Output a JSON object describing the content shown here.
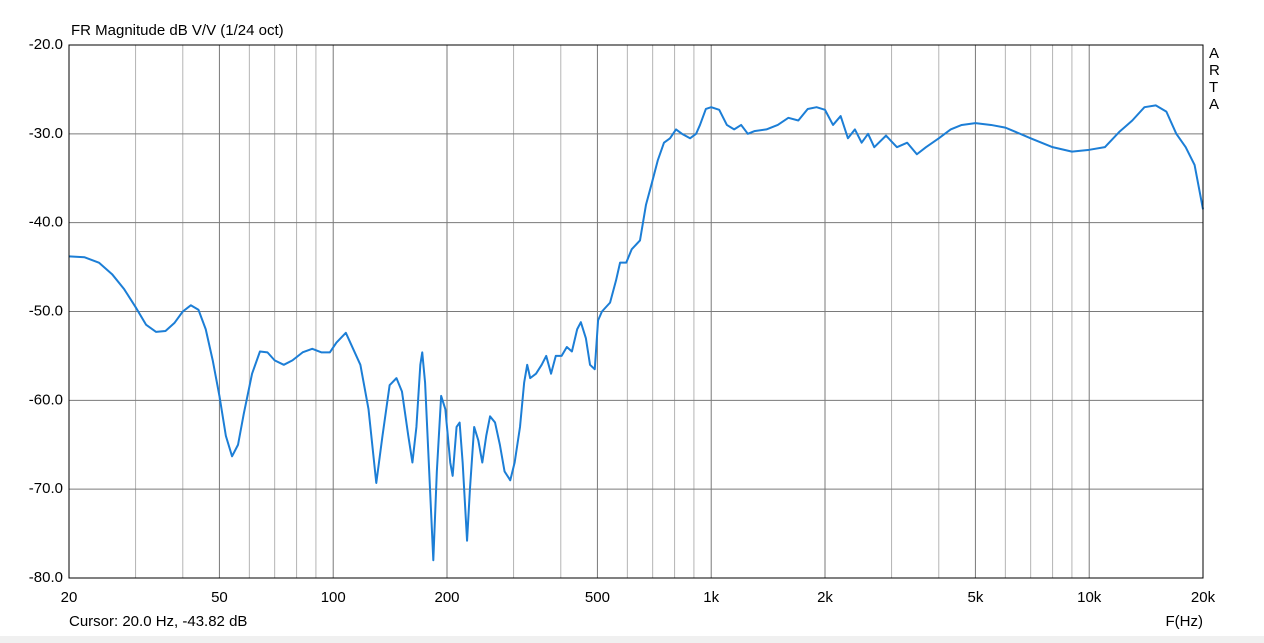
{
  "chart_data": {
    "type": "line",
    "title": "FR Magnitude dB V/V (1/24 oct)",
    "brand": "ARTA",
    "cursor_label": "Cursor: 20.0 Hz, -43.82 dB",
    "x_label": "F(Hz)",
    "log_x": true,
    "grid": true,
    "xlim": [
      20,
      20000
    ],
    "ylim": [
      -80,
      -20
    ],
    "xticks": [
      20,
      50,
      100,
      200,
      500,
      {
        "value": 1000,
        "label": "1k"
      },
      {
        "value": 2000,
        "label": "2k"
      },
      {
        "value": 5000,
        "label": "5k"
      },
      {
        "value": 10000,
        "label": "10k"
      },
      {
        "value": 20000,
        "label": "20k"
      }
    ],
    "x_minor_grid": [
      30,
      40,
      60,
      70,
      80,
      90,
      300,
      400,
      600,
      700,
      800,
      900,
      3000,
      4000,
      6000,
      7000,
      8000,
      9000
    ],
    "yticks": [
      {
        "value": -20,
        "label": "-20.0"
      },
      {
        "value": -30,
        "label": "-30.0"
      },
      {
        "value": -40,
        "label": "-40.0"
      },
      {
        "value": -50,
        "label": "-50.0"
      },
      {
        "value": -60,
        "label": "-60.0"
      },
      {
        "value": -70,
        "label": "-70.0"
      },
      {
        "value": -80,
        "label": "-80.0"
      }
    ],
    "x": [
      20,
      22,
      24,
      26,
      28,
      30,
      32,
      34,
      36,
      38,
      40,
      42,
      44,
      46,
      48,
      50,
      52,
      54,
      56,
      58,
      61,
      64,
      67,
      70,
      74,
      78,
      83,
      88,
      93,
      98,
      102,
      108,
      118,
      124,
      130,
      135,
      141,
      147,
      152,
      158,
      162,
      166,
      170,
      172,
      175,
      179,
      184,
      188,
      193,
      198,
      204,
      207,
      212,
      216,
      220,
      226,
      230,
      236,
      242,
      248,
      254,
      260,
      268,
      276,
      284,
      294,
      302,
      312,
      320,
      326,
      332,
      344,
      356,
      366,
      377,
      388,
      402,
      415,
      428,
      442,
      452,
      466,
      478,
      492,
      502,
      514,
      540,
      560,
      574,
      596,
      616,
      648,
      672,
      697,
      722,
      750,
      778,
      807,
      837,
      879,
      912,
      934,
      968,
      1000,
      1050,
      1100,
      1150,
      1200,
      1250,
      1300,
      1400,
      1500,
      1600,
      1700,
      1800,
      1900,
      2000,
      2100,
      2200,
      2300,
      2400,
      2500,
      2600,
      2700,
      2900,
      3100,
      3300,
      3500,
      3700,
      4000,
      4300,
      4600,
      5000,
      5500,
      6000,
      7000,
      8000,
      9000,
      10000,
      11000,
      12000,
      13000,
      14000,
      15000,
      16000,
      17000,
      18000,
      19000,
      20000
    ],
    "series": [
      {
        "name": "FR",
        "color": "#1c7ed6",
        "values": [
          -43.8,
          -43.9,
          -44.5,
          -45.8,
          -47.5,
          -49.5,
          -51.5,
          -52.3,
          -52.2,
          -51.3,
          -50,
          -49.3,
          -49.8,
          -52,
          -55.5,
          -59.5,
          -64,
          -66.3,
          -65,
          -61.5,
          -57,
          -54.5,
          -54.6,
          -55.5,
          -56,
          -55.5,
          -54.6,
          -54.2,
          -54.6,
          -54.6,
          -53.5,
          -52.4,
          -56,
          -61,
          -69.3,
          -64,
          -58.3,
          -57.5,
          -59,
          -64,
          -67,
          -63,
          -56,
          -54.6,
          -58,
          -67,
          -78,
          -68,
          -59.5,
          -61,
          -67,
          -68.5,
          -63,
          -62.5,
          -67,
          -75.8,
          -70,
          -63,
          -64.5,
          -67,
          -64,
          -61.8,
          -62.5,
          -65,
          -68,
          -69,
          -67,
          -63,
          -58,
          -56,
          -57.5,
          -57,
          -56,
          -55,
          -57,
          -55,
          -55,
          -54,
          -54.5,
          -52,
          -51.2,
          -53,
          -56,
          -56.5,
          -51,
          -50,
          -49,
          -46.5,
          -44.5,
          -44.5,
          -43,
          -42,
          -38,
          -35.5,
          -33,
          -31,
          -30.5,
          -29.5,
          -30,
          -30.5,
          -30,
          -29,
          -27.2,
          -27,
          -27.3,
          -29,
          -29.5,
          -29,
          -30,
          -29.7,
          -29.5,
          -29,
          -28.2,
          -28.5,
          -27.2,
          -27,
          -27.3,
          -29,
          -28,
          -30.5,
          -29.5,
          -31,
          -30,
          -31.5,
          -30.2,
          -31.5,
          -31,
          -32.3,
          -31.5,
          -30.5,
          -29.5,
          -29,
          -28.8,
          -29,
          -29.3,
          -30.5,
          -31.5,
          -32,
          -31.8,
          -31.5,
          -29.8,
          -28.5,
          -27,
          -26.8,
          -27.5,
          -30,
          -31.5,
          -33.5,
          -38.5
        ]
      }
    ]
  }
}
